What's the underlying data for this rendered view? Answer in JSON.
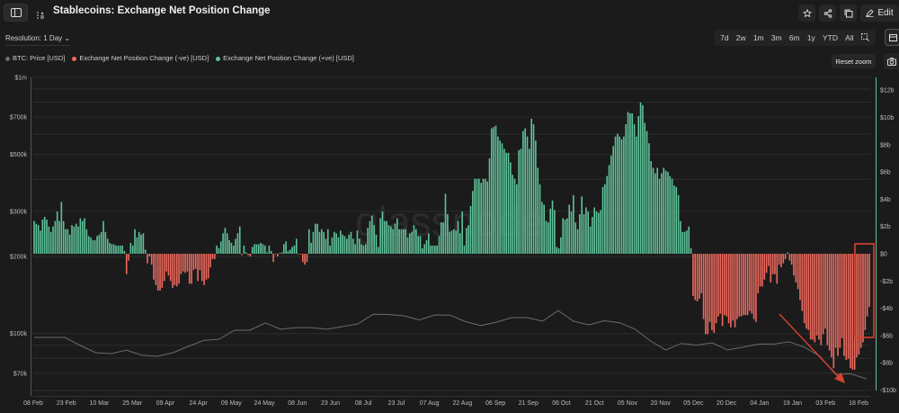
{
  "header": {
    "title": "Stablecoins: Exchange Net Position Change",
    "edit_label": "Edit",
    "icons": [
      "sidebar-toggle-icon",
      "layout-icon",
      "star-icon",
      "share-icon",
      "copy-icon",
      "pencil-icon"
    ]
  },
  "toolbar": {
    "resolution": "Resolution: 1 Day",
    "ranges": [
      "7d",
      "2w",
      "1m",
      "3m",
      "6m",
      "1y",
      "YTD",
      "All"
    ],
    "reset_zoom": "Reset zoom"
  },
  "legend": [
    {
      "label": "BTC: Price [USD]",
      "color": "#6b6b6b"
    },
    {
      "label": "Exchange Net Position Change (-ve) [USD]",
      "color": "#ef6a5e"
    },
    {
      "label": "Exchange Net Position Change (+ve) [USD]",
      "color": "#5fc39a"
    }
  ],
  "watermark": "glassnode",
  "chart_data": {
    "type": "bar",
    "title": "Stablecoins: Exchange Net Position Change",
    "x_tick_labels": [
      "08 Feb",
      "23 Feb",
      "10 Mar",
      "25 Mar",
      "09 Apr",
      "24 Apr",
      "09 May",
      "24 May",
      "08 Jun",
      "23 Jun",
      "08 Jul",
      "23 Jul",
      "07 Aug",
      "22 Aug",
      "06 Sep",
      "21 Sep",
      "06 Oct",
      "21 Oct",
      "05 Nov",
      "20 Nov",
      "05 Dec",
      "20 Dec",
      "04 Jan",
      "19 Jan",
      "03 Feb",
      "18 Feb"
    ],
    "right_axis": {
      "unit": "USD (billions)",
      "ylim": [
        -10,
        13
      ],
      "ticks": [
        {
          "label": "$12b",
          "value": 12
        },
        {
          "label": "$10b",
          "value": 10
        },
        {
          "label": "$8b",
          "value": 8
        },
        {
          "label": "$6b",
          "value": 6
        },
        {
          "label": "$4b",
          "value": 4
        },
        {
          "label": "$2b",
          "value": 2
        },
        {
          "label": "$0",
          "value": 0
        },
        {
          "label": "-$2b",
          "value": -2
        },
        {
          "label": "-$4b",
          "value": -4
        },
        {
          "label": "-$6b",
          "value": -6
        },
        {
          "label": "-$8b",
          "value": -8
        },
        {
          "label": "-$10b",
          "value": -10
        }
      ]
    },
    "left_axis": {
      "scale": "log",
      "ylim": [
        58000,
        1000000
      ],
      "ticks": [
        {
          "label": "$1m",
          "value": 1000000
        },
        {
          "label": "$700k",
          "value": 700000
        },
        {
          "label": "$500k",
          "value": 500000
        },
        {
          "label": "$300k",
          "value": 300000
        },
        {
          "label": "$200k",
          "value": 200000
        },
        {
          "label": "$100k",
          "value": 100000
        },
        {
          "label": "$70k",
          "value": 70000
        }
      ],
      "gridlines": [
        1000000,
        900000,
        800000,
        700000,
        600000,
        500000,
        400000,
        300000,
        200000,
        100000,
        90000,
        80000,
        70000,
        60000
      ]
    },
    "grid": true,
    "series": [
      {
        "name": "Exchange Net Position Change [USD]",
        "unit": "billions USD, daily",
        "positive_color": "#5fc39a",
        "negative_color": "#ef6a5e",
        "values": [
          2.4,
          2.2,
          2.1,
          1.7,
          2.5,
          2.7,
          2.5,
          2.0,
          1.6,
          2.0,
          2.4,
          3.1,
          2.4,
          3.8,
          2.4,
          1.8,
          1.8,
          1.4,
          2.1,
          2.0,
          2.2,
          2.0,
          2.6,
          2.4,
          2.6,
          1.8,
          1.3,
          1.2,
          1.0,
          1.0,
          1.3,
          1.4,
          1.6,
          2.4,
          1.6,
          1.1,
          0.8,
          0.7,
          0.7,
          0.6,
          0.6,
          0.6,
          0.6,
          0.2,
          -1.5,
          -0.5,
          0.8,
          0.6,
          1.8,
          1.2,
          1.6,
          1.4,
          1.5,
          0.3,
          -0.7,
          -0.2,
          -0.8,
          -1.9,
          -2.3,
          -2.7,
          -2.7,
          -2.5,
          -2.0,
          -1.3,
          -1.6,
          -2.0,
          -2.5,
          -2.3,
          -2.4,
          -2.2,
          -1.5,
          -1.3,
          -1.4,
          -1.3,
          -2.2,
          -2.2,
          -1.2,
          -1.1,
          -2.0,
          -1.2,
          -2.0,
          -2.3,
          -1.9,
          -1.8,
          -1.0,
          -0.4,
          -0.4,
          0.6,
          0.4,
          0.9,
          1.5,
          1.9,
          1.5,
          1.0,
          0.8,
          0.6,
          1.1,
          1.5,
          2.0,
          -0.1,
          0.6,
          0.1,
          -0.1,
          -0.2,
          0.5,
          0.7,
          0.7,
          0.7,
          0.8,
          0.7,
          0.6,
          0.1,
          0.6,
          0.2,
          -0.6,
          -0.05,
          -0.2,
          0.05,
          0.1,
          0.7,
          0.9,
          0.2,
          0.3,
          0.5,
          0.6,
          1.1,
          -0.05,
          -0.05,
          -0.6,
          -0.8,
          -0.6,
          1.8,
          0.8,
          1.6,
          2.2,
          2.2,
          1.6,
          1.8,
          1.6,
          1.1,
          1.8,
          0.6,
          1.2,
          1.6,
          1.5,
          1.2,
          1.7,
          1.4,
          1.3,
          1.1,
          1.4,
          1.6,
          1.1,
          0.7,
          1.7,
          1.1,
          0.7,
          0.6,
          0.7,
          1.9,
          2.4,
          2.8,
          2.1,
          1.4,
          0.5,
          2.6,
          3.1,
          2.4,
          2.4,
          2.1,
          2.0,
          1.8,
          2.2,
          2.6,
          1.8,
          1.8,
          1.8,
          1.8,
          1.2,
          1.5,
          1.6,
          2.1,
          1.8,
          1.3,
          1.3,
          0.4,
          0.7,
          1.0,
          1.5,
          0.6,
          0.6,
          0.6,
          0.6,
          1.3,
          2.3,
          2.3,
          4.4,
          2.9,
          1.6,
          1.7,
          1.8,
          1.7,
          2.4,
          1.5,
          3.1,
          0.6,
          1.9,
          2.1,
          3.5,
          4.6,
          5.5,
          5.5,
          5.5,
          5.2,
          5.5,
          5.5,
          5.3,
          7.0,
          9.2,
          9.3,
          9.4,
          8.6,
          8.3,
          8.1,
          7.7,
          7.4,
          7.4,
          6.7,
          5.8,
          5.5,
          5.1,
          7.6,
          7.7,
          9.0,
          9.2,
          8.6,
          7.7,
          9.9,
          9.5,
          8.3,
          6.3,
          5.1,
          3.8,
          3.6,
          2.4,
          2.3,
          3.3,
          3.9,
          3.2,
          0.5,
          0.4,
          1.2,
          2.6,
          2.5,
          2.6,
          3.6,
          3.1,
          4.3,
          2.3,
          1.8,
          2.9,
          4.2,
          2.9,
          3.4,
          3.1,
          2.0,
          2.7,
          3.4,
          3.1,
          3.0,
          3.2,
          4.9,
          5.1,
          5.7,
          6.5,
          7.2,
          7.9,
          8.6,
          8.8,
          8.6,
          8.4,
          8.6,
          9.5,
          10.4,
          10.3,
          10.3,
          9.5,
          8.6,
          10.1,
          11.1,
          10.9,
          9.6,
          9.0,
          8.1,
          6.8,
          6.3,
          5.9,
          6.3,
          5.5,
          5.9,
          6.3,
          6.1,
          6.0,
          5.7,
          5.5,
          5.0,
          4.9,
          4.3,
          2.4,
          1.6,
          1.6,
          1.7,
          2.0,
          0.4,
          -3.1,
          -3.4,
          -3.5,
          -3.3,
          -2.9,
          -4.8,
          -5.9,
          -5.9,
          -5.0,
          -5.6,
          -5.8,
          -5.1,
          -4.6,
          -4.4,
          -5.3,
          -4.5,
          -4.6,
          -5.1,
          -5.4,
          -4.9,
          -5.4,
          -4.8,
          -4.6,
          -4.6,
          -4.5,
          -4.5,
          -4.5,
          -4.2,
          -4.4,
          -4.8,
          -5.0,
          -2.9,
          -2.4,
          -2.4,
          -1.9,
          -1.4,
          -0.9,
          -2.1,
          -1.5,
          -1.5,
          -2.2,
          -0.8,
          -1.0,
          -0.7,
          -0.4,
          0.1,
          -0.5,
          -0.8,
          -1.6,
          -2.1,
          -2.6,
          -3.4,
          -4.2,
          -5.1,
          -5.5,
          -5.6,
          -6.3,
          -6.3,
          -6.5,
          -6.0,
          -6.3,
          -6.7,
          -5.9,
          -5.5,
          -6.7,
          -7.1,
          -7.6,
          -8.4,
          -6.9,
          -7.5,
          -6.9,
          -6.2,
          -7.5,
          -7.8,
          -7.7,
          -8.4,
          -8.5,
          -8.5,
          -7.6,
          -7.4,
          -6.9,
          -6.5,
          -5.6,
          -4.6,
          -3.9
        ]
      },
      {
        "name": "BTC: Price [USD]",
        "unit": "thousands USD, weekly samples from 08 Feb",
        "color": "#6b6b6b",
        "values": [
          96.6,
          96.6,
          96.6,
          89.8,
          84.2,
          83.5,
          86.2,
          82.2,
          81.5,
          84.2,
          89.1,
          94,
          95,
          103,
          103,
          110,
          104,
          105.5,
          105.5,
          104,
          106.4,
          109,
          119,
          118.7,
          117.3,
          113,
          118.2,
          118,
          111.3,
          107.5,
          110.8,
          115.4,
          115.4,
          111.7,
          123,
          111.7,
          108.2,
          112.2,
          110.2,
          104,
          93.5,
          86.3,
          91.5,
          90.2,
          92,
          86.3,
          88.4,
          91,
          91,
          92.8,
          88.4,
          81.5,
          69.3,
          69.6,
          66.6
        ]
      }
    ],
    "annotations": [
      {
        "type": "rectangle",
        "color": "#d9412f",
        "target": "latest negative bars"
      },
      {
        "type": "arrow",
        "color": "#d9412f",
        "direction": "down-right"
      }
    ]
  }
}
